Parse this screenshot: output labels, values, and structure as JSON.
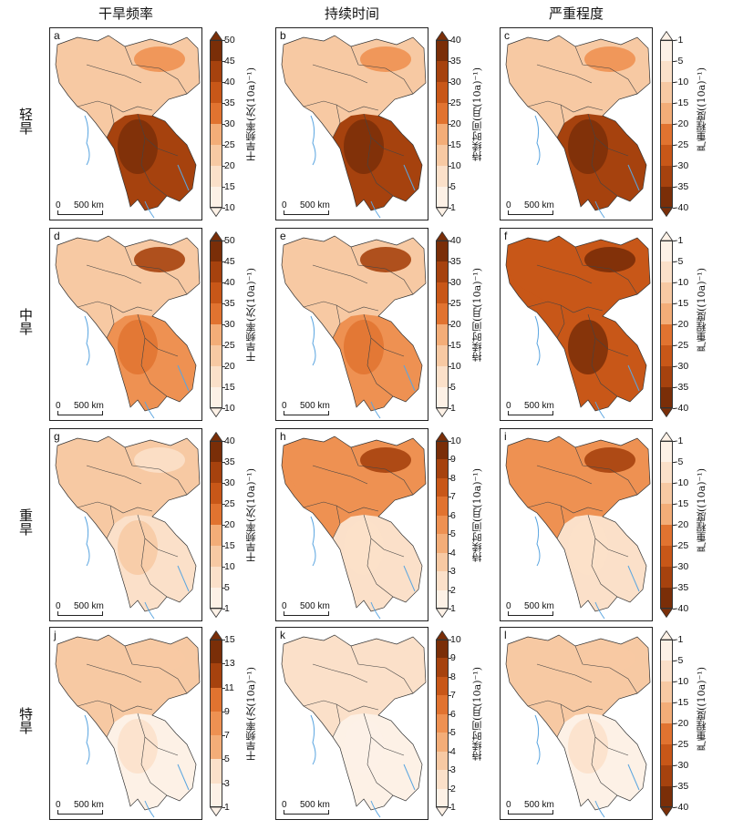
{
  "column_titles": [
    "干旱频率",
    "持续时间",
    "严重程度"
  ],
  "row_labels": [
    "轻旱",
    "中旱",
    "重旱",
    "特旱"
  ],
  "scale_bar": {
    "zero": "0",
    "distance": "500 km"
  },
  "colors": {
    "scale": [
      "#fdf1e6",
      "#fbe0c9",
      "#f7c9a3",
      "#f3ad78",
      "#ee9152",
      "#e17330",
      "#c85718",
      "#a6420e",
      "#7a2e08"
    ],
    "scale_reversed": [
      "#7a2e08",
      "#a6420e",
      "#c85718",
      "#e17330",
      "#ee9152",
      "#f3ad78",
      "#f7c9a3",
      "#fbe0c9",
      "#fdf1e6"
    ]
  },
  "panels": [
    {
      "label": "a",
      "cb_label": "干旱频率(次(10a)⁻¹)",
      "ticks": [
        "50",
        "45",
        "40",
        "35",
        "30",
        "25",
        "20",
        "15",
        "10"
      ],
      "intensity": "high_sea",
      "reverse": false
    },
    {
      "label": "b",
      "cb_label": "持续时间(月(10a)⁻¹)",
      "ticks": [
        "40",
        "35",
        "30",
        "25",
        "20",
        "15",
        "10",
        "5",
        "1"
      ],
      "intensity": "high_sea",
      "reverse": false
    },
    {
      "label": "c",
      "cb_label": "严重程度((10a)⁻¹)",
      "ticks": [
        "-1",
        "-5",
        "-10",
        "-15",
        "-20",
        "-25",
        "-30",
        "-35",
        "-40"
      ],
      "intensity": "high_sea",
      "reverse": true
    },
    {
      "label": "d",
      "cb_label": "干旱频率(次(10a)⁻¹)",
      "ticks": [
        "50",
        "45",
        "40",
        "35",
        "30",
        "25",
        "20",
        "15",
        "10"
      ],
      "intensity": "mid",
      "reverse": false
    },
    {
      "label": "e",
      "cb_label": "持续时间(月(10a)⁻¹)",
      "ticks": [
        "40",
        "35",
        "30",
        "25",
        "20",
        "15",
        "10",
        "5",
        "1"
      ],
      "intensity": "mid",
      "reverse": false
    },
    {
      "label": "f",
      "cb_label": "严重程度((10a)⁻¹)",
      "ticks": [
        "-1",
        "-5",
        "-10",
        "-15",
        "-20",
        "-25",
        "-30",
        "-35",
        "-40"
      ],
      "intensity": "high_all",
      "reverse": true
    },
    {
      "label": "g",
      "cb_label": "干旱频率(次(10a)⁻¹)",
      "ticks": [
        "40",
        "35",
        "30",
        "25",
        "20",
        "15",
        "10",
        "5",
        "1"
      ],
      "intensity": "low",
      "reverse": false
    },
    {
      "label": "h",
      "cb_label": "持续时间(月(10a)⁻¹)",
      "ticks": [
        "10",
        "9",
        "8",
        "7",
        "6",
        "5",
        "4",
        "3",
        "2",
        "1"
      ],
      "intensity": "low_north",
      "reverse": false
    },
    {
      "label": "i",
      "cb_label": "严重程度((10a)⁻¹)",
      "ticks": [
        "-1",
        "-5",
        "-10",
        "-15",
        "-20",
        "-25",
        "-30",
        "-35",
        "-40"
      ],
      "intensity": "low_north",
      "reverse": true
    },
    {
      "label": "j",
      "cb_label": "干旱频率(次(10a)⁻¹)",
      "ticks": [
        "15",
        "13",
        "11",
        "9",
        "7",
        "5",
        "3",
        "1"
      ],
      "intensity": "vlow",
      "reverse": false
    },
    {
      "label": "k",
      "cb_label": "持续时间(月(10a)⁻¹)",
      "ticks": [
        "10",
        "9",
        "8",
        "7",
        "6",
        "5",
        "4",
        "3",
        "2",
        "1"
      ],
      "intensity": "vvlow",
      "reverse": false
    },
    {
      "label": "l",
      "cb_label": "严重程度((10a)⁻¹)",
      "ticks": [
        "-1",
        "-5",
        "-10",
        "-15",
        "-20",
        "-25",
        "-30",
        "-35",
        "-40"
      ],
      "intensity": "vlow",
      "reverse": true
    }
  ]
}
